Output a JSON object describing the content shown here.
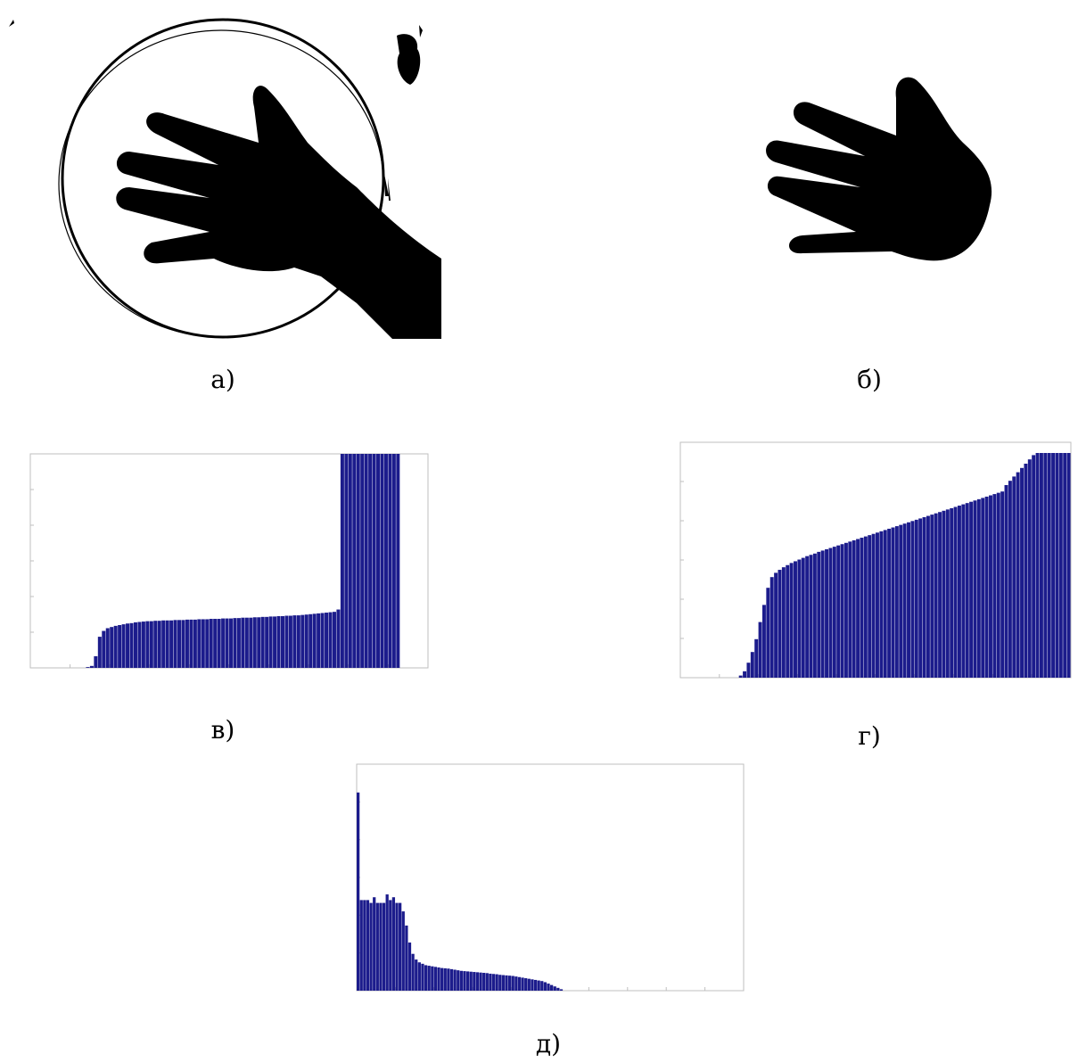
{
  "captions": {
    "a": "а)",
    "b": "б)",
    "v": "в)",
    "g": "г)",
    "d": "д)"
  },
  "colors": {
    "bar": "#1c1c8c",
    "silhouette": "#000000",
    "frame": "#bfbfbf"
  },
  "panels": {
    "a": {
      "content": "binary-hand-with-ring-noise"
    },
    "b": {
      "content": "binary-hand-clean"
    }
  },
  "chart_data": [
    {
      "id": "v",
      "type": "bar",
      "title": "",
      "xlabel": "",
      "ylabel": "",
      "xlim": [
        0,
        100
      ],
      "ylim": [
        0,
        5.5
      ],
      "values": [
        0,
        0,
        0,
        0,
        0,
        0,
        0,
        0,
        0,
        0,
        0,
        0,
        0,
        0,
        0.02,
        0.05,
        0.3,
        0.8,
        0.95,
        1.02,
        1.05,
        1.08,
        1.1,
        1.12,
        1.14,
        1.15,
        1.17,
        1.18,
        1.19,
        1.2,
        1.2,
        1.21,
        1.21,
        1.22,
        1.22,
        1.22,
        1.23,
        1.23,
        1.23,
        1.24,
        1.24,
        1.24,
        1.25,
        1.25,
        1.25,
        1.26,
        1.26,
        1.26,
        1.27,
        1.27,
        1.27,
        1.28,
        1.28,
        1.29,
        1.29,
        1.29,
        1.3,
        1.3,
        1.31,
        1.31,
        1.32,
        1.32,
        1.33,
        1.33,
        1.34,
        1.34,
        1.35,
        1.35,
        1.36,
        1.37,
        1.38,
        1.39,
        1.4,
        1.41,
        1.42,
        1.43,
        1.44,
        1.5,
        5.5,
        5.5,
        5.5,
        5.5,
        5.5,
        5.5,
        5.5,
        5.5,
        5.5,
        5.5,
        5.5,
        5.5,
        5.5,
        5.5,
        5.5
      ]
    },
    {
      "id": "g",
      "type": "bar",
      "title": "",
      "xlabel": "",
      "ylabel": "",
      "xlim": [
        0,
        100
      ],
      "ylim": [
        0,
        5.5
      ],
      "values": [
        0,
        0,
        0,
        0,
        0,
        0,
        0,
        0,
        0,
        0,
        0,
        0,
        0,
        0,
        0,
        0.05,
        0.15,
        0.35,
        0.6,
        0.9,
        1.3,
        1.7,
        2.1,
        2.35,
        2.45,
        2.52,
        2.58,
        2.63,
        2.68,
        2.72,
        2.76,
        2.8,
        2.84,
        2.87,
        2.9,
        2.94,
        2.97,
        3.0,
        3.03,
        3.06,
        3.09,
        3.12,
        3.15,
        3.18,
        3.21,
        3.24,
        3.27,
        3.3,
        3.33,
        3.36,
        3.39,
        3.42,
        3.45,
        3.48,
        3.51,
        3.54,
        3.57,
        3.6,
        3.63,
        3.66,
        3.69,
        3.72,
        3.75,
        3.78,
        3.81,
        3.84,
        3.87,
        3.9,
        3.93,
        3.96,
        3.99,
        4.02,
        4.05,
        4.08,
        4.11,
        4.14,
        4.17,
        4.2,
        4.23,
        4.26,
        4.29,
        4.32,
        4.35,
        4.5,
        4.6,
        4.7,
        4.8,
        4.9,
        5.0,
        5.1,
        5.2,
        5.25,
        5.25,
        5.25,
        5.25,
        5.25,
        5.25,
        5.25,
        5.25,
        5.25
      ]
    },
    {
      "id": "d",
      "type": "bar",
      "title": "",
      "xlabel": "",
      "ylabel": "",
      "xlim": [
        0,
        120
      ],
      "ylim": [
        0,
        8000
      ],
      "values": [
        7000,
        3200,
        3200,
        3200,
        3100,
        3300,
        3100,
        3100,
        3100,
        3400,
        3200,
        3300,
        3100,
        3100,
        2800,
        2300,
        1700,
        1300,
        1100,
        1000,
        950,
        900,
        880,
        860,
        840,
        820,
        800,
        790,
        780,
        760,
        740,
        720,
        700,
        690,
        680,
        670,
        660,
        650,
        640,
        630,
        620,
        600,
        590,
        580,
        560,
        550,
        540,
        530,
        520,
        500,
        480,
        460,
        440,
        420,
        400,
        380,
        360,
        340,
        300,
        250,
        200,
        150,
        100,
        50,
        0,
        0,
        0,
        0,
        0,
        0,
        0,
        0,
        0,
        0,
        0,
        0,
        0,
        0,
        0,
        0,
        0,
        0,
        0,
        0,
        0,
        0,
        0,
        0,
        0,
        0,
        0,
        0,
        0,
        0,
        0,
        0,
        0,
        0,
        0,
        0,
        0,
        0,
        0,
        0,
        0,
        0,
        0,
        0,
        0,
        0,
        0,
        0,
        0,
        0,
        0,
        0,
        0,
        0,
        0,
        0
      ]
    }
  ]
}
